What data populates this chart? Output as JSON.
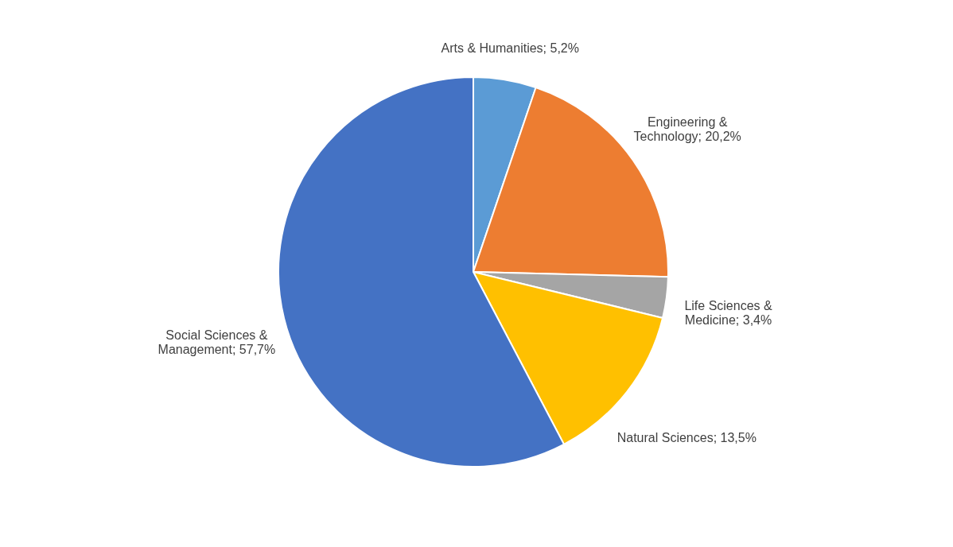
{
  "chart_data": {
    "type": "pie",
    "categories": [
      "Arts & Humanities",
      "Engineering & Technology",
      "Life Sciences & Medicine",
      "Natural Sciences",
      "Social Sciences & Management"
    ],
    "values": [
      5.2,
      20.2,
      3.4,
      13.5,
      57.7
    ],
    "value_labels": [
      "5,2%",
      "20,2%",
      "3,4%",
      "13,5%",
      "57,7%"
    ],
    "colors": [
      "#5b9bd5",
      "#ed7d31",
      "#a5a5a5",
      "#ffc000",
      "#4472c4"
    ]
  }
}
